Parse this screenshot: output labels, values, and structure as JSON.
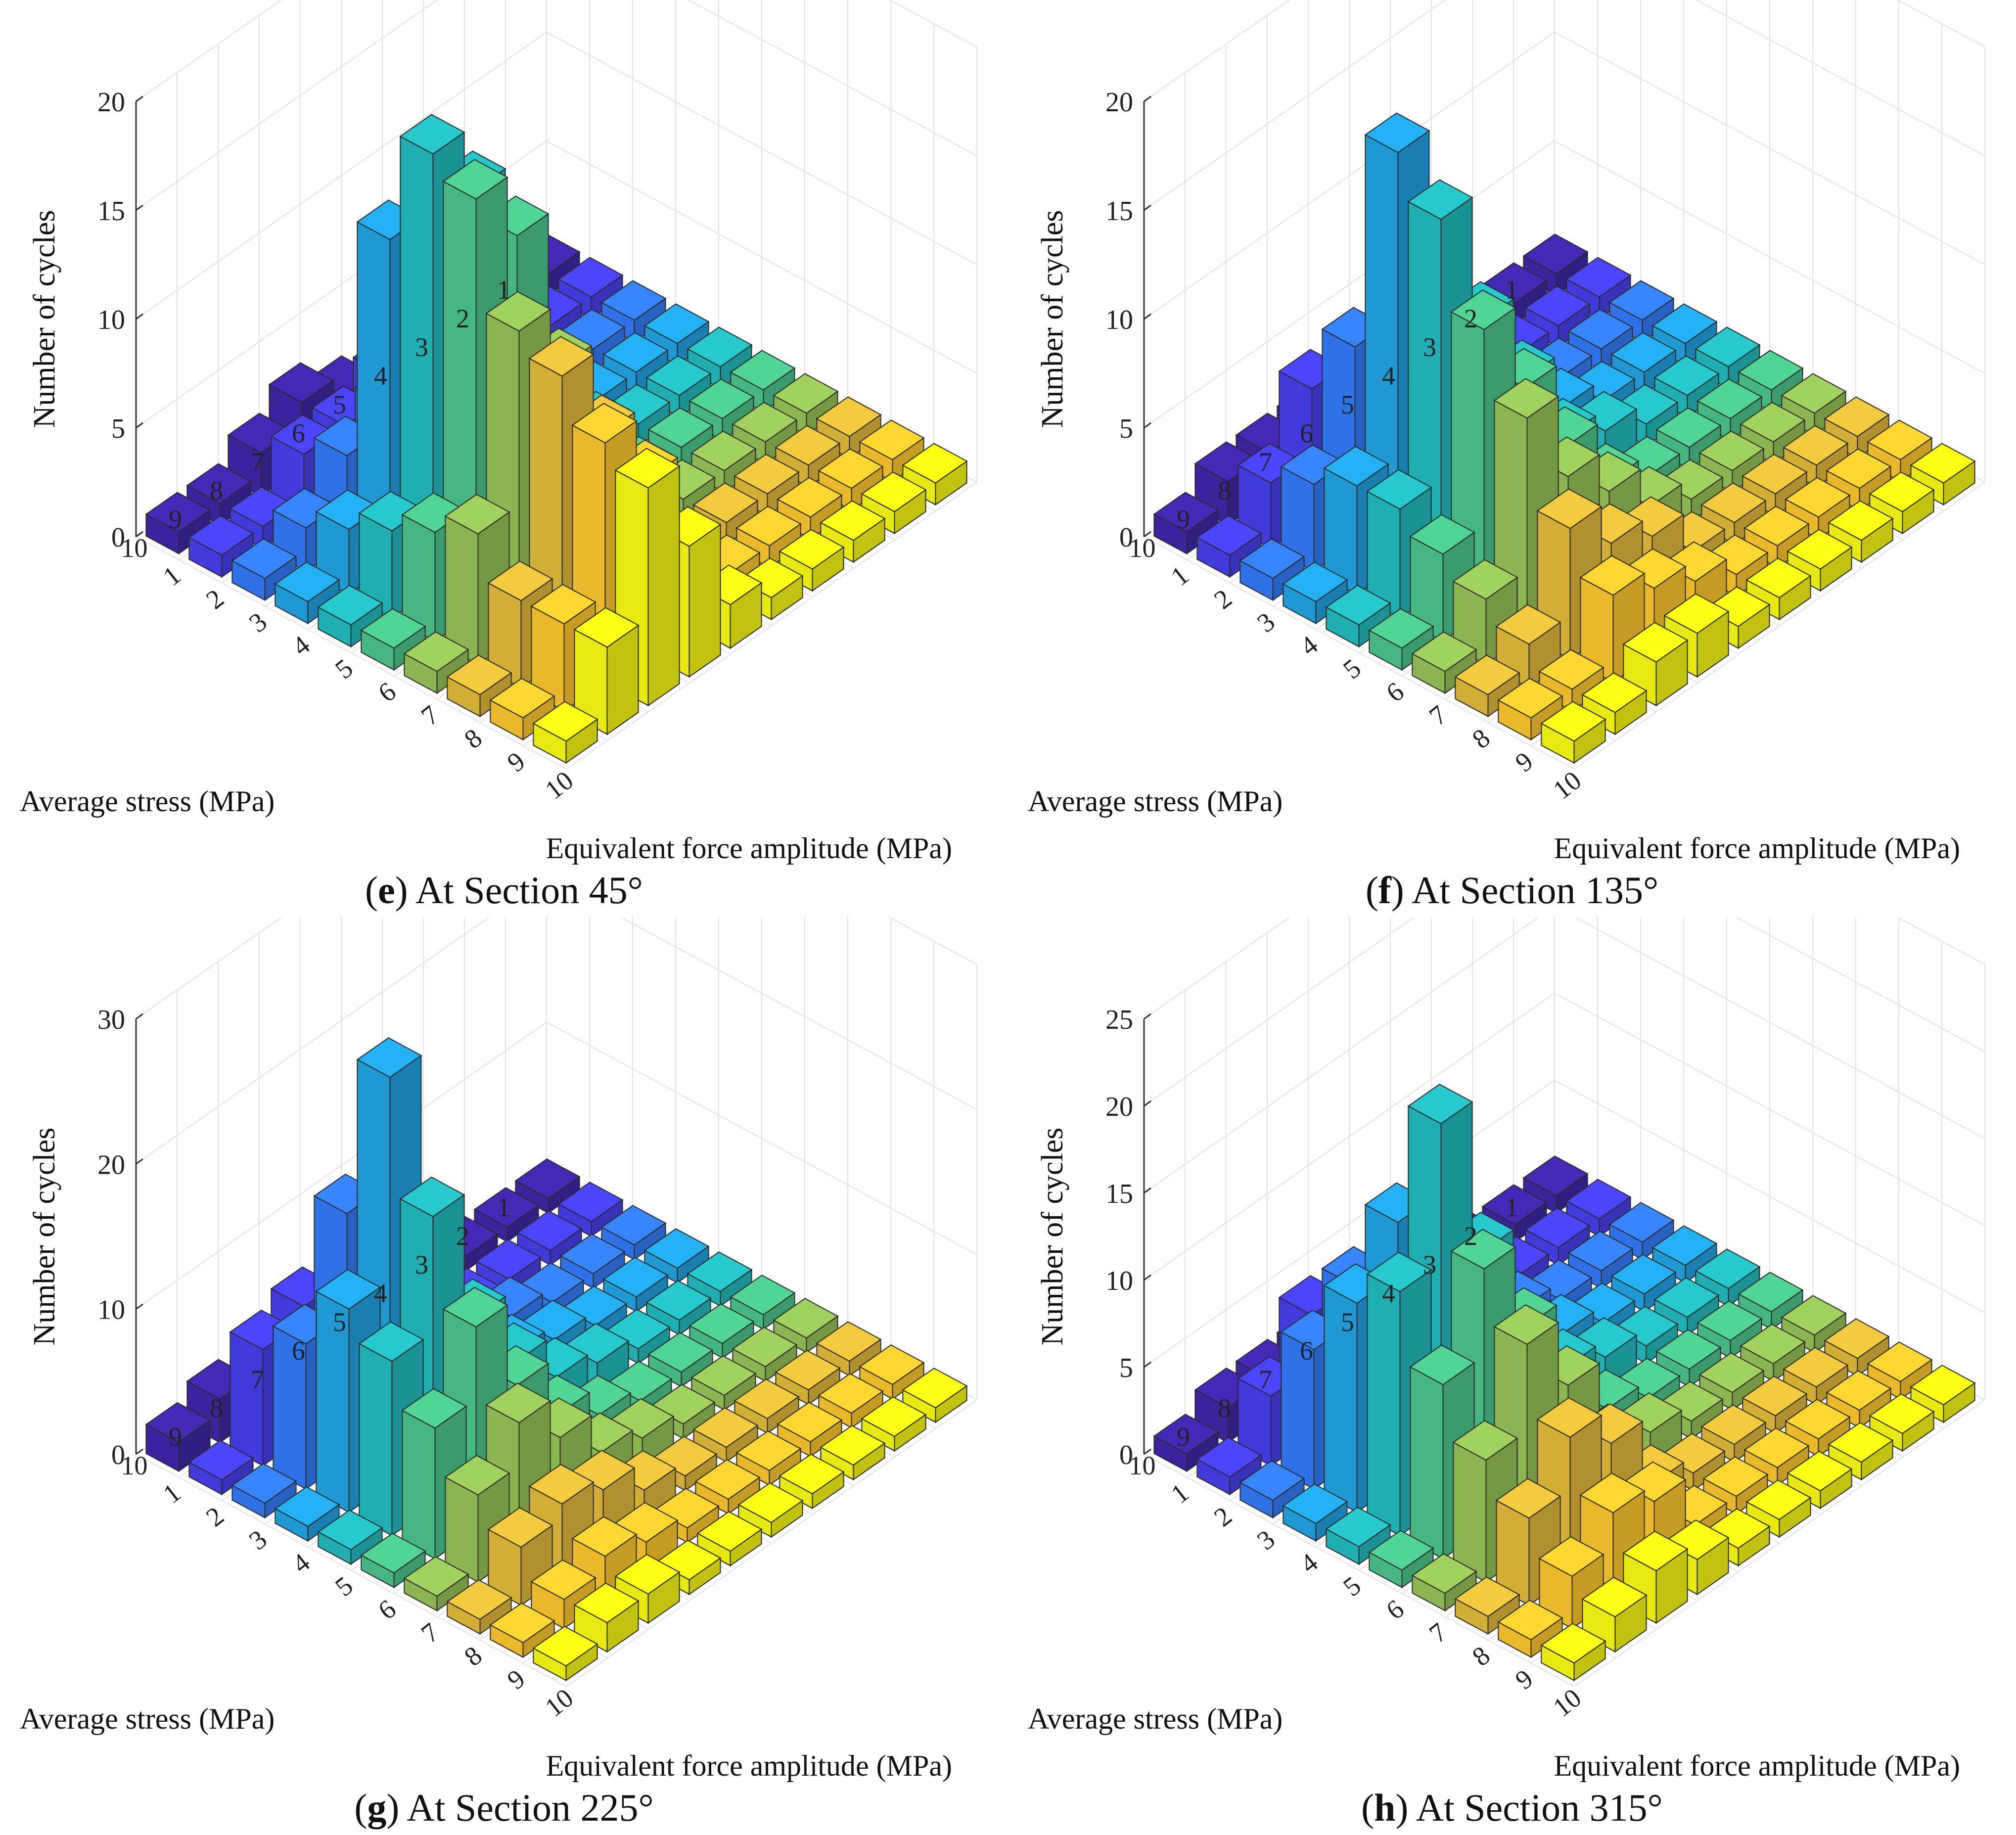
{
  "figure": {
    "caption_open": "(",
    "caption_close": ")"
  },
  "colors": {
    "colormap": [
      "#3e26a8",
      "#4743f4",
      "#2d8bfb",
      "#1cb0d8",
      "#29c4a9",
      "#73c764",
      "#d9ba3c",
      "#fbc131",
      "#f9fa14"
    ],
    "grid": "#e3e3e3",
    "edge": "#2a2a2a"
  },
  "chart_data": [
    {
      "type": "bar3d",
      "panel_letter": "e",
      "caption": "At Section 45°",
      "zlabel": "Number of cycles",
      "xlabel": "Equivalent force amplitude (MPa)",
      "ylabel": "Average stress (MPa)",
      "zlim": [
        0,
        20
      ],
      "zticks": [
        0,
        5,
        10,
        15,
        20
      ],
      "x_ticks": [
        "1",
        "2",
        "3",
        "4",
        "5",
        "6",
        "7",
        "8",
        "9",
        "10"
      ],
      "y_ticks": [
        "1",
        "2",
        "3",
        "4",
        "5",
        "6",
        "7",
        "8",
        "9",
        "10"
      ],
      "values": [
        [
          1,
          1,
          1,
          1,
          1,
          1,
          1,
          1,
          1,
          1
        ],
        [
          1,
          1,
          2,
          3,
          4,
          5,
          6,
          4,
          4,
          4
        ],
        [
          2,
          3,
          4,
          15,
          20,
          19,
          14,
          13,
          11,
          10
        ],
        [
          3,
          3,
          5,
          14,
          17,
          16,
          11,
          9,
          8,
          6
        ],
        [
          2,
          4,
          5,
          11,
          10,
          8,
          6,
          4,
          3,
          2
        ],
        [
          1,
          2,
          4,
          3,
          3,
          2,
          2,
          1,
          1,
          1
        ],
        [
          1,
          1,
          2,
          2,
          2,
          1,
          1,
          1,
          1,
          1
        ],
        [
          1,
          1,
          1,
          1,
          1,
          1,
          1,
          1,
          1,
          1
        ],
        [
          1,
          1,
          1,
          1,
          1,
          1,
          1,
          1,
          1,
          1
        ],
        [
          1,
          1,
          1,
          1,
          1,
          1,
          1,
          1,
          1,
          1
        ]
      ]
    },
    {
      "type": "bar3d",
      "panel_letter": "f",
      "caption": "At Section 135°",
      "zlabel": "Number of cycles",
      "xlabel": "Equivalent force amplitude (MPa)",
      "ylabel": "Average stress (MPa)",
      "zlim": [
        0,
        20
      ],
      "zticks": [
        0,
        5,
        10,
        15,
        20
      ],
      "x_ticks": [
        "1",
        "2",
        "3",
        "4",
        "5",
        "6",
        "7",
        "8",
        "9",
        "10"
      ],
      "y_ticks": [
        "1",
        "2",
        "3",
        "4",
        "5",
        "6",
        "7",
        "8",
        "9",
        "10"
      ],
      "values": [
        [
          1,
          1,
          1,
          1,
          1,
          1,
          1,
          1,
          1,
          1
        ],
        [
          2,
          3,
          4,
          5,
          5,
          4,
          3,
          2,
          1,
          1
        ],
        [
          2,
          6,
          9,
          19,
          17,
          13,
          10,
          6,
          4,
          2
        ],
        [
          2,
          5,
          7,
          12,
          11,
          9,
          6,
          4,
          3,
          2
        ],
        [
          2,
          4,
          6,
          6,
          7,
          5,
          4,
          3,
          2,
          1
        ],
        [
          1,
          2,
          3,
          3,
          3,
          2,
          2,
          1,
          1,
          1
        ],
        [
          1,
          1,
          2,
          2,
          2,
          1,
          1,
          1,
          1,
          1
        ],
        [
          1,
          1,
          1,
          1,
          1,
          1,
          1,
          1,
          1,
          1
        ],
        [
          1,
          1,
          1,
          1,
          1,
          1,
          1,
          1,
          1,
          1
        ],
        [
          1,
          1,
          1,
          1,
          1,
          1,
          1,
          1,
          1,
          1
        ]
      ]
    },
    {
      "type": "bar3d",
      "panel_letter": "g",
      "caption": "At Section 225°",
      "zlabel": "Number of cycles",
      "xlabel": "Equivalent force amplitude (MPa)",
      "ylabel": "Average stress (MPa)",
      "zlim": [
        0,
        30
      ],
      "zticks": [
        0,
        10,
        20,
        30
      ],
      "x_ticks": [
        "1",
        "2",
        "3",
        "4",
        "5",
        "6",
        "7",
        "8",
        "9",
        "10"
      ],
      "y_ticks": [
        "1",
        "2",
        "3",
        "4",
        "5",
        "6",
        "7",
        "8",
        "9",
        "10"
      ],
      "values": [
        [
          2,
          1,
          1,
          1,
          1,
          1,
          1,
          1,
          1,
          1
        ],
        [
          3,
          8,
          10,
          14,
          12,
          9,
          6,
          4,
          2,
          2
        ],
        [
          2,
          9,
          17,
          28,
          20,
          14,
          9,
          5,
          3,
          2
        ],
        [
          2,
          5,
          10,
          13,
          11,
          8,
          6,
          4,
          2,
          1
        ],
        [
          1,
          3,
          5,
          7,
          6,
          4,
          3,
          2,
          1,
          1
        ],
        [
          1,
          2,
          3,
          3,
          3,
          2,
          2,
          1,
          1,
          1
        ],
        [
          1,
          1,
          2,
          2,
          2,
          1,
          1,
          1,
          1,
          1
        ],
        [
          1,
          1,
          1,
          1,
          1,
          1,
          1,
          1,
          1,
          1
        ],
        [
          1,
          1,
          1,
          1,
          1,
          1,
          1,
          1,
          1,
          1
        ],
        [
          1,
          1,
          1,
          1,
          1,
          1,
          1,
          1,
          1,
          1
        ]
      ]
    },
    {
      "type": "bar3d",
      "panel_letter": "h",
      "caption": "At Section 315°",
      "zlabel": "Number of cycles",
      "xlabel": "Equivalent force amplitude (MPa)",
      "ylabel": "Average stress (MPa)",
      "zlim": [
        0,
        25
      ],
      "zticks": [
        0,
        5,
        10,
        15,
        20,
        25
      ],
      "x_ticks": [
        "1",
        "2",
        "3",
        "4",
        "5",
        "6",
        "7",
        "8",
        "9",
        "10"
      ],
      "y_ticks": [
        "1",
        "2",
        "3",
        "4",
        "5",
        "6",
        "7",
        "8",
        "9",
        "10"
      ],
      "values": [
        [
          1,
          1,
          1,
          1,
          1,
          1,
          1,
          1,
          1,
          1
        ],
        [
          2,
          4,
          8,
          12,
          14,
          10,
          7,
          5,
          3,
          2
        ],
        [
          2,
          7,
          10,
          15,
          22,
          15,
          12,
          8,
          5,
          3
        ],
        [
          2,
          5,
          8,
          11,
          13,
          10,
          8,
          6,
          4,
          2
        ],
        [
          1,
          3,
          5,
          7,
          6,
          4,
          3,
          2,
          1,
          1
        ],
        [
          1,
          2,
          3,
          3,
          3,
          2,
          2,
          1,
          1,
          1
        ],
        [
          1,
          1,
          2,
          2,
          2,
          1,
          1,
          1,
          1,
          1
        ],
        [
          1,
          1,
          1,
          1,
          1,
          1,
          1,
          1,
          1,
          1
        ],
        [
          1,
          1,
          1,
          1,
          1,
          1,
          1,
          1,
          1,
          1
        ],
        [
          1,
          1,
          1,
          1,
          1,
          1,
          1,
          1,
          1,
          1
        ]
      ]
    }
  ]
}
